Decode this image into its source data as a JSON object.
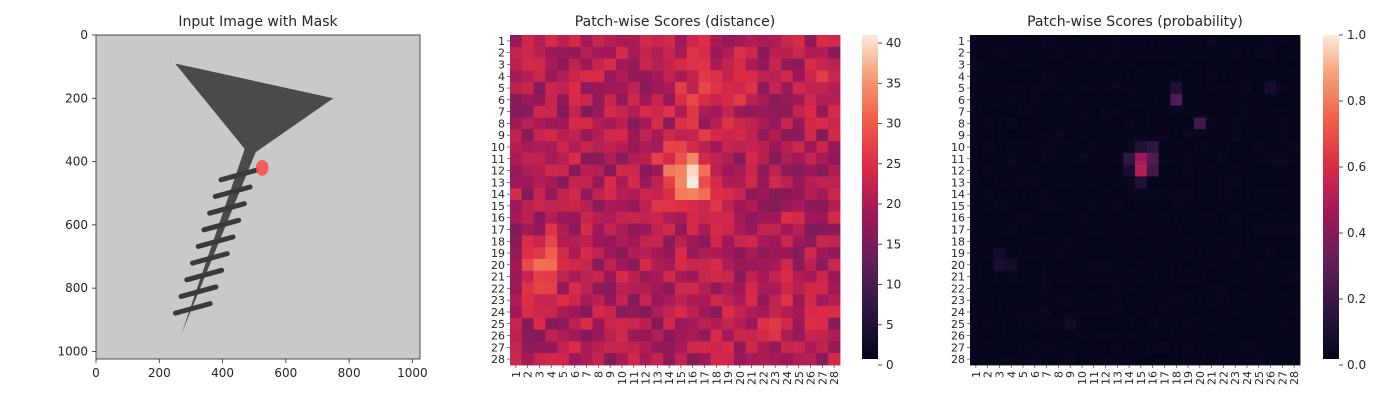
{
  "chart_data": [
    {
      "type": "image",
      "title": "Input Image with Mask",
      "xlim": [
        0,
        1024
      ],
      "ylim": [
        1024,
        0
      ],
      "xticks": [
        0,
        200,
        400,
        600,
        800,
        1000
      ],
      "yticks": [
        0,
        200,
        400,
        600,
        800,
        1000
      ],
      "background_color": "#c9c9c9",
      "object_color": "#4a4a4a",
      "mask_color": "#ff4a4a",
      "screw": {
        "head_left": [
          250,
          90
        ],
        "head_right": [
          750,
          200
        ],
        "head_bottom_left": [
          470,
          360
        ],
        "head_bottom_right": [
          505,
          370
        ],
        "tip": [
          270,
          945
        ]
      },
      "mask": {
        "x": 525,
        "y": 420,
        "rx": 20,
        "ry": 25
      }
    },
    {
      "type": "heatmap",
      "title": "Patch-wise Scores (distance)",
      "rows": 28,
      "cols": 28,
      "row_labels": [
        "1",
        "2",
        "3",
        "4",
        "5",
        "6",
        "7",
        "8",
        "9",
        "10",
        "11",
        "12",
        "13",
        "14",
        "15",
        "16",
        "17",
        "18",
        "19",
        "20",
        "21",
        "22",
        "23",
        "24",
        "25",
        "26",
        "27",
        "28"
      ],
      "col_labels": [
        "1",
        "2",
        "3",
        "4",
        "5",
        "6",
        "7",
        "8",
        "9",
        "10",
        "11",
        "12",
        "13",
        "14",
        "15",
        "16",
        "17",
        "18",
        "19",
        "20",
        "21",
        "22",
        "23",
        "24",
        "25",
        "26",
        "27",
        "28"
      ],
      "colorbar": {
        "vmin": 0,
        "vmax": 41,
        "ticks": [
          0,
          5,
          10,
          15,
          20,
          25,
          30,
          35,
          40
        ]
      },
      "colormap": "rocket",
      "background_level": 20,
      "blobs": [
        {
          "row": 12.5,
          "col": 15.5,
          "sigma_row": 1.8,
          "sigma_col": 1.3,
          "peak": 20
        },
        {
          "row": 20,
          "col": 3.5,
          "sigma_row": 1.6,
          "sigma_col": 1.2,
          "peak": 8
        },
        {
          "row": 5,
          "col": 17.5,
          "sigma_row": 2.0,
          "sigma_col": 2.5,
          "peak": 5
        },
        {
          "row": 5,
          "col": 26,
          "sigma_row": 1.2,
          "sigma_col": 1.2,
          "peak": 4
        },
        {
          "row": 24,
          "col": 24,
          "sigma_row": 2.0,
          "sigma_col": 1.5,
          "peak": 3
        }
      ]
    },
    {
      "type": "heatmap",
      "title": "Patch-wise Scores (probability)",
      "rows": 28,
      "cols": 28,
      "row_labels": [
        "1",
        "2",
        "3",
        "4",
        "5",
        "6",
        "7",
        "8",
        "9",
        "10",
        "11",
        "12",
        "13",
        "14",
        "15",
        "16",
        "17",
        "18",
        "19",
        "20",
        "21",
        "22",
        "23",
        "24",
        "25",
        "26",
        "27",
        "28"
      ],
      "col_labels": [
        "1",
        "2",
        "3",
        "4",
        "5",
        "6",
        "7",
        "8",
        "9",
        "10",
        "11",
        "12",
        "13",
        "14",
        "15",
        "16",
        "17",
        "18",
        "19",
        "20",
        "21",
        "22",
        "23",
        "24",
        "25",
        "26",
        "27",
        "28"
      ],
      "colorbar": {
        "vmin": 0.0,
        "vmax": 1.0,
        "ticks": [
          0.0,
          0.2,
          0.4,
          0.6,
          0.8,
          1.0
        ]
      },
      "colormap": "rocket",
      "background_level": 0.005,
      "highlights": [
        {
          "row": 11,
          "col": 14,
          "value": 0.15
        },
        {
          "row": 11,
          "col": 15,
          "value": 0.45
        },
        {
          "row": 11,
          "col": 16,
          "value": 0.25
        },
        {
          "row": 12,
          "col": 15,
          "value": 0.5
        },
        {
          "row": 12,
          "col": 16,
          "value": 0.2
        },
        {
          "row": 12,
          "col": 14,
          "value": 0.08
        },
        {
          "row": 10,
          "col": 15,
          "value": 0.1
        },
        {
          "row": 10,
          "col": 16,
          "value": 0.15
        },
        {
          "row": 13,
          "col": 15,
          "value": 0.1
        },
        {
          "row": 6,
          "col": 18,
          "value": 0.25
        },
        {
          "row": 8,
          "col": 20,
          "value": 0.2
        },
        {
          "row": 5,
          "col": 18,
          "value": 0.1
        },
        {
          "row": 20,
          "col": 3,
          "value": 0.08
        },
        {
          "row": 19,
          "col": 3,
          "value": 0.05
        },
        {
          "row": 20,
          "col": 4,
          "value": 0.06
        },
        {
          "row": 25,
          "col": 9,
          "value": 0.05
        },
        {
          "row": 5,
          "col": 26,
          "value": 0.06
        }
      ]
    }
  ]
}
